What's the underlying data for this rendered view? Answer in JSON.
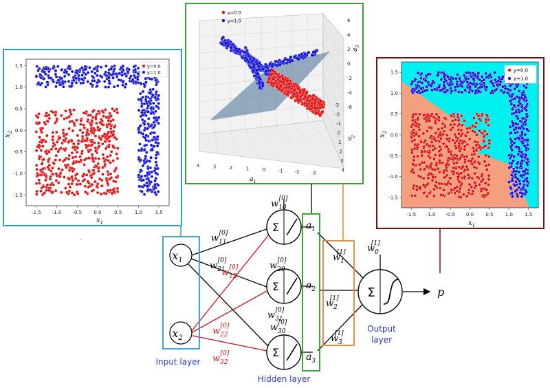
{
  "colors": {
    "class0": "#e01010",
    "class1": "#1010d8",
    "panel_input": "#2a9ad8",
    "panel_3d": "#3a9a3a",
    "panel_output": "#7a1010",
    "hidden_box": "#2a9a2a",
    "weights_box": "#f08020",
    "input_box": "#2a9ad8",
    "red_weight": "#cc1010",
    "layer_label": "#2a3ab8",
    "region_cyan": "#00f0f0",
    "region_salmon": "#f4a07e",
    "plane": "#6a8aa8"
  },
  "legend": {
    "class0": "y=0.0",
    "class1": "y=1.0"
  },
  "labels": {
    "input_layer": "Input layer",
    "hidden_layer": "Hidden layer",
    "output_layer_1": "Output",
    "output_layer_2": "layer",
    "sigma": "Σ",
    "output_p": "p",
    "x1": "x",
    "x2": "x",
    "sub1": "1",
    "sub2": "2",
    "a": "a",
    "a1_sub": "1",
    "a2_sub": "2",
    "a3_sub": "3"
  },
  "weights": {
    "w": "w",
    "w10_sub": "10",
    "w10_sup": "[0]",
    "w11_sub": "11",
    "w11_sup": "[0]",
    "w21_sub": "21",
    "w21_sup": "[0]",
    "w12_sub": "12",
    "w12_sup": "[0]",
    "w20_sub": "20",
    "w20_sup": "[0]",
    "w22_sub": "22",
    "w22_sup": "[0]",
    "w31_sub": "31",
    "w31_sup": "[0]",
    "w30_sub": "30",
    "w30_sup": "[0]",
    "w32_sub": "32",
    "w32_sup": "[0]",
    "w0_sub": "0",
    "w0_sup": "[1]",
    "w1_sub": "1",
    "w1_sup": "[1]",
    "w2_sub": "2",
    "w2_sup": "[1]",
    "w3_sub": "3",
    "w3_sup": "[1]"
  },
  "chart_data": [
    {
      "type": "scatter",
      "panel": "input-space",
      "xlabel": "x",
      "xlabel_sub": "1",
      "ylabel": "x",
      "ylabel_sub": "2",
      "xlim": [
        -1.75,
        1.75
      ],
      "ylim": [
        -1.75,
        1.65
      ],
      "xticks": [
        "-1.5",
        "-1.0",
        "-0.5",
        "0.0",
        "0.5",
        "1.0",
        "1.5"
      ],
      "yticks": [
        "1.5",
        "1.0",
        "0.5",
        "0.0",
        "-0.5",
        "-1.0",
        "-1.5"
      ],
      "series": [
        {
          "name": "y=0.0",
          "region": "square",
          "x_range": [
            -1.5,
            0.5
          ],
          "y_range": [
            -1.5,
            0.5
          ]
        },
        {
          "name": "y=1.0",
          "region": "L-shape",
          "parts": [
            {
              "x_range": [
                -1.5,
                1.5
              ],
              "y_range": [
                1.0,
                1.5
              ]
            },
            {
              "x_range": [
                1.0,
                1.5
              ],
              "y_range": [
                -1.5,
                1.0
              ]
            }
          ]
        }
      ],
      "legend_position": "top-right"
    },
    {
      "type": "scatter",
      "panel": "hidden-space-3d",
      "xlabel": "a",
      "xlabel_sub": "1",
      "ylabel": "a",
      "ylabel_sub": "2",
      "zlabel": "a",
      "zlabel_sub": "3",
      "xticks": [
        "4",
        "3",
        "2",
        "1",
        "0",
        "-1",
        "-2",
        "-3"
      ],
      "yticks": [
        "-3",
        "-2",
        "-1",
        "0",
        "1",
        "2",
        "3",
        "4"
      ],
      "zticks": [
        "6",
        "4",
        "2",
        "0",
        "-2",
        "-4",
        "-6"
      ],
      "series": [
        {
          "name": "y=0.0"
        },
        {
          "name": "y=1.0"
        }
      ],
      "separating_plane": true,
      "legend_position": "top-left"
    },
    {
      "type": "scatter",
      "panel": "output-decision",
      "xlabel": "x",
      "xlabel_sub": "1",
      "ylabel": "x",
      "ylabel_sub": "2",
      "xlim": [
        -1.75,
        1.75
      ],
      "ylim": [
        -1.75,
        1.75
      ],
      "xticks": [
        "-1.5",
        "-1.0",
        "-0.5",
        "0.0",
        "0.5",
        "1.0",
        "1.5"
      ],
      "yticks": [
        "1.5",
        "1.0",
        "0.5",
        "0.0",
        "-0.5",
        "-1.0",
        "-1.5"
      ],
      "series": [
        {
          "name": "y=0.0"
        },
        {
          "name": "y=1.0"
        }
      ],
      "decision_regions": true,
      "legend_position": "top-right"
    }
  ]
}
